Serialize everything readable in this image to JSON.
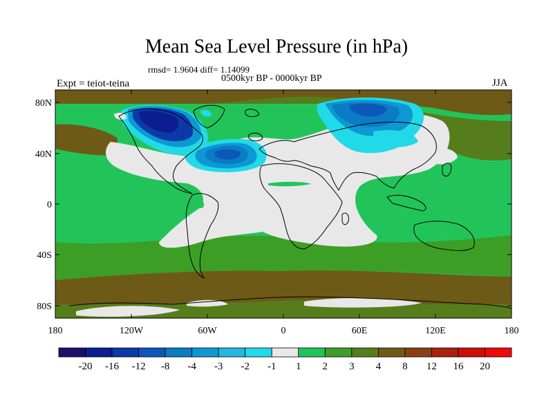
{
  "header": {
    "title": "Mean Sea Level Pressure (in hPa)",
    "stats": "rmsd= 1.9604 diff= 1.14099",
    "period": "0500kyr BP - 0000kyr BP",
    "experiment": "Expt = teiot-teina",
    "season": "JJA"
  },
  "axes": {
    "lat_labels": [
      "80N",
      "40N",
      "0",
      "40S",
      "80S"
    ],
    "lon_labels": [
      "180",
      "120W",
      "60W",
      "0",
      "60E",
      "120E",
      "180"
    ]
  },
  "colorbar": {
    "labels": [
      "-20",
      "-16",
      "-12",
      "-8",
      "-4",
      "-3",
      "-2",
      "-1",
      "1",
      "2",
      "3",
      "4",
      "8",
      "12",
      "16",
      "20"
    ],
    "colors": [
      "#1c1168",
      "#0c1d8f",
      "#0b3aa8",
      "#0d57b9",
      "#0a7bc5",
      "#0d98d3",
      "#25b6df",
      "#22d9e8",
      "#e8e8e8",
      "#22c45a",
      "#3d9e26",
      "#567d1c",
      "#6e5a17",
      "#8a3f14",
      "#a8220e",
      "#cc1008",
      "#ee0a0a"
    ]
  },
  "colors": {
    "ocean_green": "#22c45a",
    "mid_green": "#3d9e26",
    "olive": "#567d1c",
    "brown": "#6e5a17",
    "neutral": "#e8e8e8"
  }
}
